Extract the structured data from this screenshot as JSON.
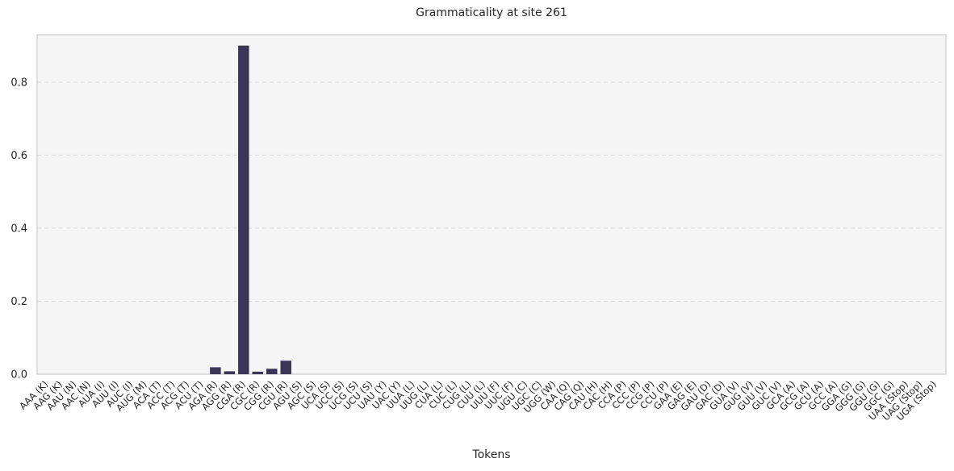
{
  "chart_data": {
    "type": "bar",
    "title": "Grammaticality at site 261",
    "xlabel": "Tokens",
    "ylabel": "",
    "ylim": [
      0,
      0.93
    ],
    "yticks": [
      "0.0",
      "0.2",
      "0.4",
      "0.6",
      "0.8"
    ],
    "ytick_values": [
      0.0,
      0.2,
      0.4,
      0.6,
      0.8
    ],
    "grid": "horizontal-dashed",
    "bar_color": "#3b3558",
    "background_color": "#f5f5f5",
    "categories": [
      "AAA (K)",
      "AAG (K)",
      "AAU (N)",
      "AAC (N)",
      "AUA (I)",
      "AUU (I)",
      "AUC (I)",
      "AUG (M)",
      "ACA (T)",
      "ACC (T)",
      "ACG (T)",
      "ACU (T)",
      "AGA (R)",
      "AGG (R)",
      "CGA (R)",
      "CGC (R)",
      "CGG (R)",
      "CGU (R)",
      "AGU (S)",
      "AGC (S)",
      "UCA (S)",
      "UCC (S)",
      "UCG (S)",
      "UCU (S)",
      "UAU (Y)",
      "UAC (Y)",
      "UUA (L)",
      "UUG (L)",
      "CUA (L)",
      "CUC (L)",
      "CUG (L)",
      "CUU (L)",
      "UUU (F)",
      "UUC (F)",
      "UGU (C)",
      "UGC (C)",
      "UGG (W)",
      "CAA (Q)",
      "CAG (Q)",
      "CAU (H)",
      "CAC (H)",
      "CCA (P)",
      "CCC (P)",
      "CCG (P)",
      "CCU (P)",
      "GAA (E)",
      "GAG (E)",
      "GAU (D)",
      "GAC (D)",
      "GUA (V)",
      "GUG (V)",
      "GUU (V)",
      "GUC (V)",
      "GCA (A)",
      "GCG (A)",
      "GCU (A)",
      "GCC (A)",
      "GGA (G)",
      "GGG (G)",
      "GGU (G)",
      "GGC (G)",
      "UAA (Stop)",
      "UAG (Stop)",
      "UGA (Stop)"
    ],
    "values": [
      0,
      0,
      0,
      0,
      0,
      0,
      0,
      0,
      0,
      0,
      0,
      0,
      0.019,
      0.008,
      0.9,
      0.007,
      0.015,
      0.037,
      0,
      0,
      0,
      0,
      0,
      0,
      0,
      0,
      0,
      0,
      0,
      0,
      0,
      0,
      0,
      0,
      0,
      0,
      0,
      0,
      0,
      0,
      0,
      0,
      0,
      0,
      0,
      0,
      0,
      0,
      0,
      0,
      0,
      0,
      0,
      0,
      0,
      0,
      0,
      0,
      0,
      0,
      0,
      0,
      0,
      0
    ]
  }
}
